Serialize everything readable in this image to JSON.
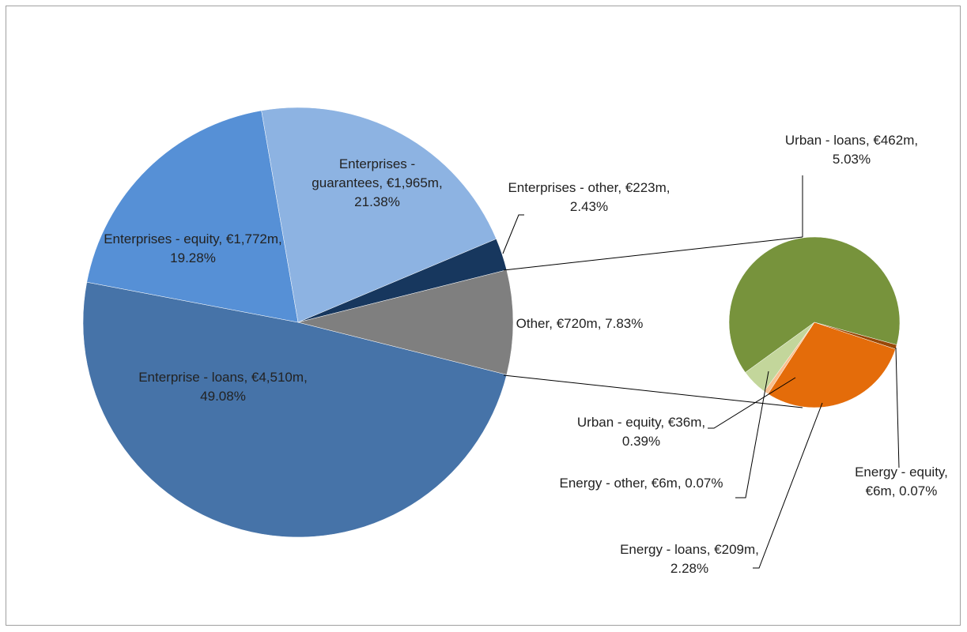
{
  "chart_data": {
    "type": "pie",
    "pies": [
      {
        "categories": [
          "Enterprise - loans",
          "Enterprises - equity",
          "Enterprises - guarantees",
          "Enterprises - other",
          "Other"
        ],
        "values": [
          4510,
          1772,
          1965,
          223,
          720
        ],
        "value_labels": [
          "€4,510m",
          "€1,772m",
          "€1,965m",
          "€223m",
          "€720m"
        ],
        "percents": [
          49.08,
          19.28,
          21.38,
          2.43,
          7.83
        ],
        "percent_labels": [
          "49.08%",
          "19.28%",
          "21.38%",
          "2.43%",
          "7.83%"
        ],
        "colors": [
          "#4673a8",
          "#5690d6",
          "#8db3e2",
          "#17375e",
          "#7f7f7f"
        ]
      },
      {
        "categories": [
          "Urban - loans",
          "Energy - equity",
          "Energy - loans",
          "Energy - other",
          "Urban - equity"
        ],
        "values": [
          462,
          6,
          209,
          6,
          36
        ],
        "value_labels": [
          "€462m",
          "€6m",
          "€209m",
          "€6m",
          "€36m"
        ],
        "percents": [
          5.03,
          0.07,
          2.28,
          0.07,
          0.39
        ],
        "percent_labels": [
          "5.03%",
          "0.07%",
          "2.28%",
          "0.07%",
          "0.39%"
        ],
        "colors": [
          "#77933c",
          "#984807",
          "#e46c0a",
          "#fac090",
          "#c3d69b"
        ]
      }
    ]
  }
}
